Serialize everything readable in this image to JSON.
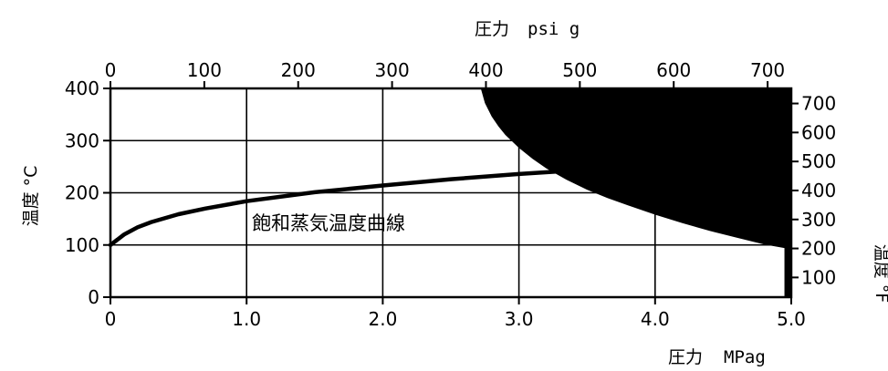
{
  "chart_data": {
    "type": "line",
    "title": "",
    "annotation": "飽和蒸気温度曲線",
    "x_bottom": {
      "label_cjk": "圧力",
      "label_unit": "MPag",
      "range": [
        0,
        5.0
      ],
      "ticks": [
        "0",
        "1.0",
        "2.0",
        "3.0",
        "4.0",
        "5.0"
      ]
    },
    "x_top": {
      "label_cjk": "圧力",
      "label_unit": "psi g",
      "range": [
        0,
        725.2
      ],
      "ticks": [
        "0",
        "100",
        "200",
        "300",
        "400",
        "500",
        "600",
        "700"
      ]
    },
    "y_left": {
      "label": "温度 °C",
      "range": [
        0,
        400
      ],
      "ticks": [
        "0",
        "100",
        "200",
        "300",
        "400"
      ]
    },
    "y_right": {
      "label": "温度 °F",
      "range": [
        32,
        752
      ],
      "ticks": [
        "100",
        "200",
        "300",
        "400",
        "500",
        "600",
        "700"
      ]
    },
    "grid": true,
    "series": [
      {
        "x": [
          0,
          0.1,
          0.2,
          0.3,
          0.5,
          0.7,
          1.0,
          1.5,
          2.0,
          2.5,
          3.0,
          3.3
        ],
        "y": [
          100,
          120,
          134,
          144,
          159,
          170,
          184,
          201,
          214,
          226,
          236,
          241
        ],
        "color": "#000000"
      }
    ],
    "filled_region": {
      "upper_x": [
        2.72,
        2.75,
        2.8,
        2.85,
        2.9,
        3.0,
        3.1,
        3.2,
        3.35,
        3.5,
        3.65,
        3.8,
        4.0,
        4.2,
        4.4,
        4.6,
        4.8,
        4.95
      ],
      "upper_y": [
        400,
        372,
        346,
        327,
        311,
        286,
        265,
        247,
        225,
        206,
        190,
        176,
        158,
        142,
        127,
        114,
        101,
        94
      ],
      "x_end": 4.95,
      "y_floor": 0,
      "color": "#000000"
    }
  }
}
